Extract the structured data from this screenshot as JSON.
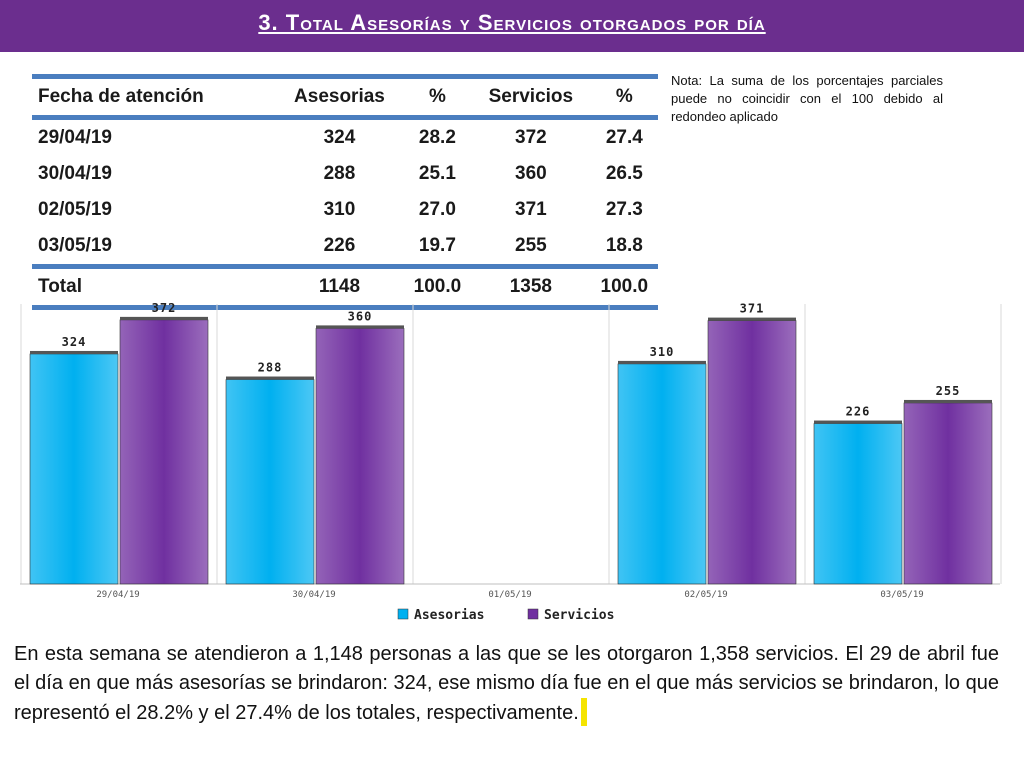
{
  "title": "3.  Total Asesorías y Servicios otorgados por día",
  "table": {
    "headers": [
      "Fecha de atención",
      "Asesorias",
      "%",
      "Servicios",
      "%"
    ],
    "rows": [
      [
        "29/04/19",
        "324",
        "28.2",
        "372",
        "27.4"
      ],
      [
        "30/04/19",
        "288",
        "25.1",
        "360",
        "26.5"
      ],
      [
        "02/05/19",
        "310",
        "27.0",
        "371",
        "27.3"
      ],
      [
        "03/05/19",
        "226",
        "19.7",
        "255",
        "18.8"
      ]
    ],
    "total": [
      "Total",
      "1148",
      "100.0",
      "1358",
      "100.0"
    ]
  },
  "note": "Nota: La suma de los porcentajes parciales puede no coincidir con el 100 debido al redondeo aplicado",
  "chart_data": {
    "type": "bar",
    "categories": [
      "29/04/19",
      "30/04/19",
      "01/05/19",
      "02/05/19",
      "03/05/19"
    ],
    "series": [
      {
        "name": "Asesorias",
        "values": [
          324,
          288,
          null,
          310,
          226
        ],
        "color": "#00b0f0"
      },
      {
        "name": "Servicios",
        "values": [
          372,
          360,
          null,
          371,
          255
        ],
        "color": "#7030a0"
      }
    ],
    "ylim": [
      0,
      400
    ],
    "grid": false,
    "legend": "bottom"
  },
  "description": "En esta semana se atendieron a 1,148 personas a las que se les otorgaron 1,358 servicios. El 29 de abril fue el día en que más asesorías se brindaron: 324, ese mismo día fue en el que más servicios se brindaron, lo que representó  el 28.2% y el 27.4% de los totales, respectivamente."
}
